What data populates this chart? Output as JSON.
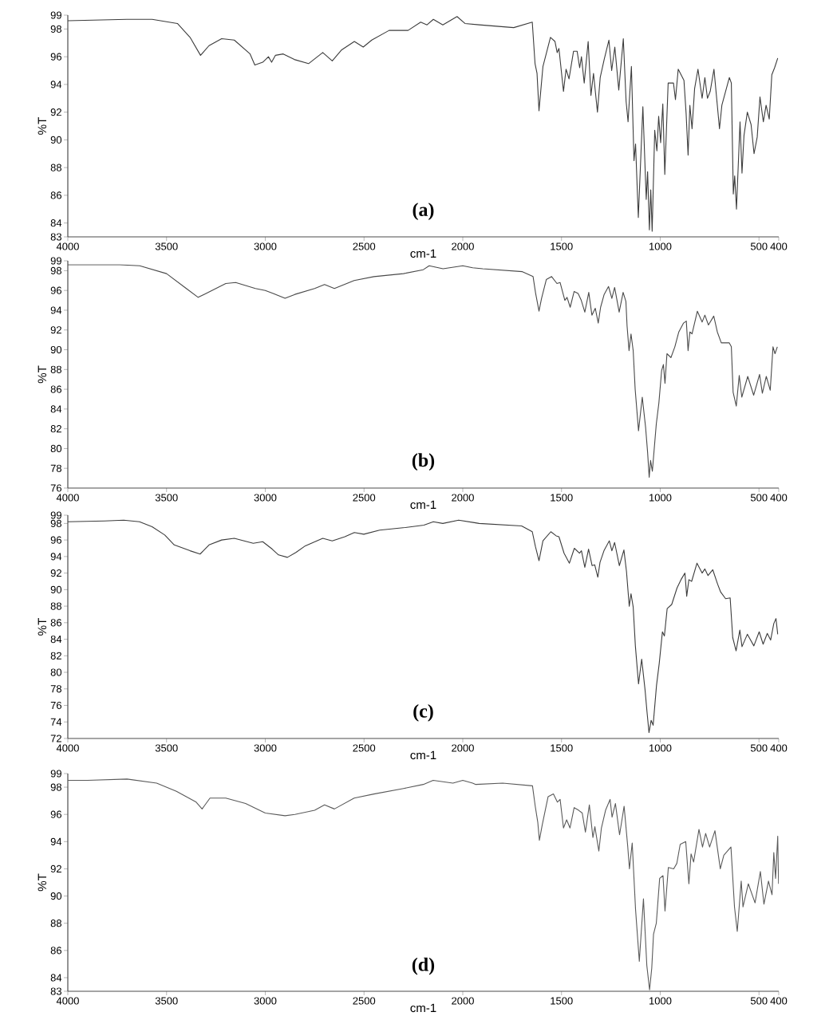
{
  "chart_data": [
    {
      "type": "line",
      "xlabel": "cm-1",
      "ylabel": "%T",
      "annotations": [
        "(a)"
      ],
      "color": "#3c3c3c",
      "xlim": [
        4000,
        400
      ],
      "xticks": [
        4000,
        3500,
        3000,
        2500,
        2000,
        1500,
        1000,
        500,
        400
      ],
      "ylim": [
        83,
        99
      ],
      "yticks": [
        83,
        84,
        86,
        88,
        90,
        92,
        94,
        96,
        98,
        99
      ],
      "x": [
        4000,
        3701,
        3573,
        3445,
        3381,
        3328,
        3285,
        3221,
        3157,
        3077,
        3053,
        3013,
        2984,
        2968,
        2949,
        2909,
        2853,
        2781,
        2709,
        2661,
        2613,
        2549,
        2504,
        2461,
        2373,
        2277,
        2213,
        2181,
        2149,
        2101,
        2029,
        1989,
        1917,
        1742,
        1648,
        1634,
        1624,
        1614,
        1594,
        1556,
        1533,
        1522,
        1513,
        1490,
        1477,
        1462,
        1439,
        1421,
        1408,
        1399,
        1385,
        1365,
        1351,
        1338,
        1318,
        1304,
        1284,
        1260,
        1246,
        1230,
        1210,
        1187,
        1173,
        1163,
        1146,
        1133,
        1125,
        1111,
        1088,
        1071,
        1064,
        1055,
        1048,
        1041,
        1028,
        1017,
        1008,
        998,
        987,
        977,
        960,
        933,
        923,
        909,
        880,
        869,
        859,
        850,
        839,
        826,
        809,
        788,
        774,
        761,
        747,
        728,
        711,
        700,
        688,
        671,
        650,
        640,
        630,
        623,
        614,
        596,
        586,
        576,
        559,
        540,
        525,
        509,
        495,
        478,
        464,
        448,
        435,
        421,
        405
      ],
      "values": [
        98.6,
        98.7,
        98.7,
        98.4,
        97.4,
        96.1,
        96.8,
        97.3,
        97.2,
        96.2,
        95.4,
        95.6,
        96.0,
        95.6,
        96.1,
        96.2,
        95.8,
        95.5,
        96.3,
        95.7,
        96.5,
        97.1,
        96.7,
        97.2,
        97.9,
        97.9,
        98.5,
        98.3,
        98.7,
        98.3,
        98.9,
        98.4,
        98.3,
        98.1,
        98.5,
        95.5,
        94.8,
        92.1,
        95.3,
        97.4,
        97.1,
        96.3,
        96.6,
        93.5,
        95.1,
        94.4,
        96.4,
        96.4,
        95.2,
        96.0,
        94.1,
        97.1,
        93.2,
        94.8,
        92.0,
        94.5,
        95.8,
        97.2,
        95.0,
        96.7,
        93.6,
        97.3,
        92.8,
        91.3,
        95.3,
        88.5,
        89.7,
        84.4,
        92.4,
        85.7,
        87.7,
        83.5,
        86.4,
        83.4,
        90.7,
        89.2,
        91.7,
        89.8,
        92.6,
        87.5,
        94.1,
        94.1,
        92.9,
        95.1,
        94.3,
        91.9,
        88.9,
        92.5,
        90.8,
        93.7,
        95.1,
        93.0,
        94.5,
        93.0,
        93.5,
        95.1,
        92.5,
        90.8,
        92.5,
        93.4,
        94.5,
        94.1,
        86.1,
        87.4,
        85.0,
        91.3,
        87.6,
        90.3,
        92.0,
        91.1,
        89.0,
        90.2,
        93.1,
        91.3,
        92.5,
        91.5,
        94.7,
        95.2,
        95.9
      ]
    },
    {
      "type": "line",
      "xlabel": "cm-1",
      "ylabel": "%T",
      "annotations": [
        "(b)"
      ],
      "color": "#4a4a4a",
      "xlim": [
        4000,
        400
      ],
      "xticks": [
        4000,
        3500,
        3000,
        2500,
        2000,
        1500,
        1000,
        500,
        400
      ],
      "ylim": [
        76,
        99
      ],
      "yticks": [
        76,
        78,
        80,
        82,
        84,
        86,
        88,
        90,
        92,
        94,
        96,
        98,
        99
      ],
      "x": [
        4000,
        3737,
        3636,
        3500,
        3400,
        3340,
        3300,
        3200,
        3150,
        3050,
        3000,
        2960,
        2900,
        2850,
        2750,
        2700,
        2650,
        2550,
        2450,
        2300,
        2200,
        2170,
        2100,
        2000,
        1950,
        1899,
        1698,
        1644,
        1631,
        1614,
        1601,
        1577,
        1550,
        1523,
        1507,
        1483,
        1472,
        1456,
        1436,
        1416,
        1400,
        1382,
        1362,
        1346,
        1329,
        1314,
        1302,
        1284,
        1262,
        1245,
        1231,
        1208,
        1188,
        1174,
        1168,
        1158,
        1148,
        1137,
        1127,
        1110,
        1091,
        1074,
        1064,
        1056,
        1049,
        1040,
        1020,
        1007,
        993,
        984,
        976,
        966,
        946,
        926,
        906,
        882,
        868,
        859,
        850,
        839,
        812,
        788,
        774,
        756,
        729,
        711,
        691,
        651,
        640,
        631,
        615,
        600,
        587,
        557,
        527,
        497,
        483,
        463,
        443,
        429,
        419,
        407
      ],
      "values": [
        98.6,
        98.6,
        98.5,
        97.7,
        96.2,
        95.3,
        95.7,
        96.7,
        96.8,
        96.2,
        96.0,
        95.7,
        95.2,
        95.6,
        96.2,
        96.6,
        96.2,
        97.0,
        97.4,
        97.7,
        98.1,
        98.5,
        98.2,
        98.5,
        98.3,
        98.2,
        97.9,
        97.4,
        95.7,
        93.9,
        95.2,
        97.1,
        97.4,
        96.7,
        96.8,
        95.0,
        95.3,
        94.3,
        95.9,
        95.7,
        95.0,
        93.8,
        95.8,
        93.5,
        94.2,
        92.7,
        94.3,
        95.6,
        96.4,
        95.2,
        96.3,
        93.8,
        95.8,
        94.9,
        92.4,
        89.9,
        91.6,
        89.9,
        86.0,
        81.8,
        85.2,
        82.1,
        79.6,
        77.1,
        78.8,
        77.7,
        82.5,
        84.6,
        87.9,
        88.5,
        86.6,
        89.6,
        89.2,
        90.3,
        91.8,
        92.7,
        92.9,
        89.9,
        91.8,
        91.6,
        93.9,
        92.8,
        93.5,
        92.5,
        93.4,
        91.8,
        90.7,
        90.7,
        90.3,
        85.7,
        84.3,
        87.4,
        85.2,
        87.3,
        85.4,
        87.5,
        85.6,
        87.3,
        85.9,
        90.3,
        89.6,
        90.3
      ]
    },
    {
      "type": "line",
      "xlabel": "cm-1",
      "ylabel": "%T",
      "annotations": [
        "(c)"
      ],
      "color": "#3c3c3c",
      "xlim": [
        4000,
        400
      ],
      "xticks": [
        4000,
        3500,
        3000,
        2500,
        2000,
        1500,
        1000,
        500,
        400
      ],
      "ylim": [
        72,
        99
      ],
      "yticks": [
        72,
        74,
        76,
        78,
        80,
        82,
        84,
        86,
        88,
        90,
        92,
        94,
        96,
        98,
        99
      ],
      "x": [
        4000,
        3813,
        3717,
        3637,
        3573,
        3509,
        3461,
        3381,
        3330,
        3285,
        3221,
        3157,
        3061,
        3013,
        2965,
        2933,
        2888,
        2845,
        2797,
        2709,
        2661,
        2597,
        2549,
        2501,
        2421,
        2293,
        2197,
        2149,
        2101,
        2021,
        1941,
        1917,
        1702,
        1648,
        1632,
        1614,
        1594,
        1554,
        1527,
        1513,
        1487,
        1460,
        1435,
        1409,
        1399,
        1382,
        1363,
        1345,
        1332,
        1316,
        1305,
        1285,
        1258,
        1245,
        1231,
        1207,
        1184,
        1171,
        1157,
        1148,
        1137,
        1126,
        1110,
        1094,
        1077,
        1067,
        1057,
        1046,
        1036,
        1019,
        1005,
        989,
        979,
        965,
        942,
        915,
        895,
        875,
        866,
        855,
        841,
        814,
        788,
        774,
        758,
        734,
        710,
        694,
        669,
        646,
        633,
        616,
        597,
        586,
        559,
        526,
        499,
        479,
        458,
        441,
        425,
        414,
        405
      ],
      "values": [
        98.2,
        98.3,
        98.4,
        98.2,
        97.6,
        96.6,
        95.4,
        94.7,
        94.3,
        95.4,
        96.0,
        96.2,
        95.6,
        95.8,
        94.9,
        94.2,
        93.9,
        94.5,
        95.3,
        96.2,
        95.9,
        96.4,
        96.9,
        96.7,
        97.2,
        97.5,
        97.8,
        98.2,
        98.0,
        98.4,
        98.1,
        98.0,
        97.7,
        97.0,
        95.2,
        93.5,
        95.9,
        97.0,
        96.5,
        96.4,
        94.4,
        93.2,
        95.0,
        94.4,
        94.7,
        92.7,
        94.9,
        92.9,
        93.0,
        91.5,
        93.3,
        94.7,
        95.9,
        94.7,
        95.7,
        92.9,
        94.8,
        92.2,
        88.0,
        89.5,
        87.9,
        83.2,
        78.6,
        81.6,
        77.9,
        75.2,
        72.7,
        74.2,
        73.6,
        78.4,
        81.1,
        84.9,
        84.4,
        87.7,
        88.2,
        90.2,
        91.2,
        92.0,
        89.2,
        91.2,
        91.0,
        93.2,
        92.0,
        92.5,
        91.7,
        92.4,
        90.7,
        89.7,
        88.9,
        89.0,
        84.2,
        82.6,
        85.1,
        83.1,
        84.6,
        83.2,
        84.9,
        83.4,
        84.7,
        83.9,
        85.9,
        86.5,
        84.6
      ]
    },
    {
      "type": "line",
      "xlabel": "cm-1",
      "ylabel": "%T",
      "annotations": [
        "(d)"
      ],
      "color": "#5a5a5a",
      "xlim": [
        4000,
        400
      ],
      "xticks": [
        4000,
        3500,
        3000,
        2500,
        2000,
        1500,
        1000,
        500,
        400
      ],
      "ylim": [
        83,
        99
      ],
      "yticks": [
        83,
        84,
        86,
        88,
        90,
        92,
        94,
        96,
        98,
        99
      ],
      "x": [
        4000,
        3900,
        3700,
        3550,
        3450,
        3350,
        3320,
        3280,
        3200,
        3100,
        3000,
        2900,
        2850,
        2750,
        2700,
        2650,
        2550,
        2450,
        2300,
        2200,
        2150,
        2050,
        2000,
        1950,
        1934,
        1798,
        1647,
        1633,
        1620,
        1612,
        1598,
        1568,
        1541,
        1521,
        1507,
        1490,
        1474,
        1457,
        1436,
        1413,
        1395,
        1379,
        1359,
        1341,
        1331,
        1311,
        1298,
        1277,
        1254,
        1244,
        1227,
        1206,
        1183,
        1165,
        1156,
        1142,
        1125,
        1106,
        1085,
        1068,
        1054,
        1043,
        1034,
        1020,
        1003,
        986,
        976,
        959,
        932,
        916,
        899,
        871,
        855,
        844,
        831,
        804,
        786,
        770,
        750,
        723,
        696,
        678,
        642,
        624,
        610,
        590,
        581,
        554,
        520,
        493,
        475,
        452,
        434,
        425,
        416,
        405,
        401
      ],
      "values": [
        98.5,
        98.5,
        98.6,
        98.3,
        97.7,
        96.9,
        96.4,
        97.2,
        97.2,
        96.8,
        96.1,
        95.9,
        96.0,
        96.3,
        96.7,
        96.4,
        97.2,
        97.5,
        97.9,
        98.2,
        98.5,
        98.3,
        98.5,
        98.3,
        98.2,
        98.3,
        98.1,
        96.6,
        95.4,
        94.1,
        95.2,
        97.3,
        97.5,
        96.9,
        97.1,
        95.0,
        95.6,
        95.0,
        96.5,
        96.3,
        96.1,
        94.7,
        96.7,
        94.3,
        95.1,
        93.3,
        95.0,
        96.3,
        97.1,
        95.8,
        96.8,
        94.5,
        96.6,
        93.7,
        92.0,
        93.9,
        89.0,
        85.2,
        89.8,
        84.9,
        83.1,
        84.7,
        87.2,
        88.0,
        91.3,
        91.5,
        88.9,
        92.1,
        92.0,
        92.4,
        93.8,
        94.0,
        90.9,
        93.1,
        92.5,
        94.9,
        93.6,
        94.6,
        93.6,
        94.8,
        92.0,
        93.0,
        93.6,
        89.2,
        87.4,
        91.1,
        89.2,
        90.9,
        89.5,
        91.8,
        89.4,
        91.1,
        90.1,
        93.2,
        91.3,
        94.4,
        90.9
      ]
    }
  ]
}
